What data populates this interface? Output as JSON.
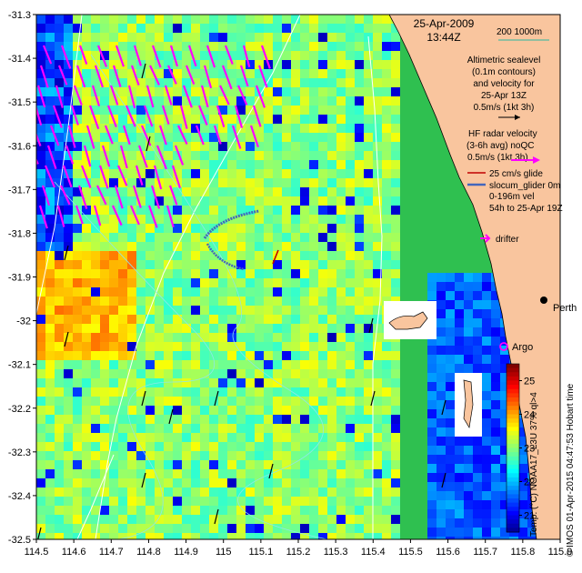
{
  "header": {
    "date": "25-Apr-2009",
    "time": "13:44Z",
    "scale_label": "200  1000m"
  },
  "legend": {
    "altimetric": [
      "Altimetric sealevel",
      "(0.1m contours)",
      "and velocity for",
      "25-Apr 13Z",
      "0.5m/s (1kt 3h)"
    ],
    "hf_radar": [
      "HF radar velocity",
      "(3-6h avg) noQC",
      "0.5m/s (1kt 3h)"
    ],
    "glider_speed": "25 cm/s glide",
    "glider_name": "slocum_glider 0m",
    "glider_vel": [
      "0-196m vel",
      "54h to 25-Apr 19Z"
    ],
    "drifter": "drifter"
  },
  "places": {
    "perth": "Perth",
    "argo": "Argo"
  },
  "colorbar": {
    "label": "Temp. (°C) NOAA17_L3U 37% ql>4",
    "ticks": [
      "21",
      "22",
      "23",
      "24",
      "25"
    ],
    "vmin": 20.5,
    "vmax": 25.5
  },
  "credit": "© IMOS 01-Apr-2015 04:47:53 Hobart time",
  "axes": {
    "x_ticks": [
      "114.5",
      "114.6",
      "114.7",
      "114.8",
      "114.9",
      "115",
      "115.1",
      "115.2",
      "115.3",
      "115.4",
      "115.5",
      "115.6",
      "115.7",
      "115.8",
      "115.9"
    ],
    "y_ticks": [
      "-31.3",
      "-31.4",
      "-31.5",
      "-31.6",
      "-31.7",
      "-31.8",
      "-31.9",
      "-32",
      "-32.1",
      "-32.2",
      "-32.3",
      "-32.4",
      "-32.5"
    ],
    "x_range": [
      114.5,
      115.9
    ],
    "y_range": [
      -32.5,
      -31.3
    ]
  },
  "colors": {
    "land": "#f9c59e",
    "radar_arrows": "#ff00ff",
    "glider": "#c00000",
    "contour": "#8fe8e8",
    "isobath": "#ffffff"
  }
}
